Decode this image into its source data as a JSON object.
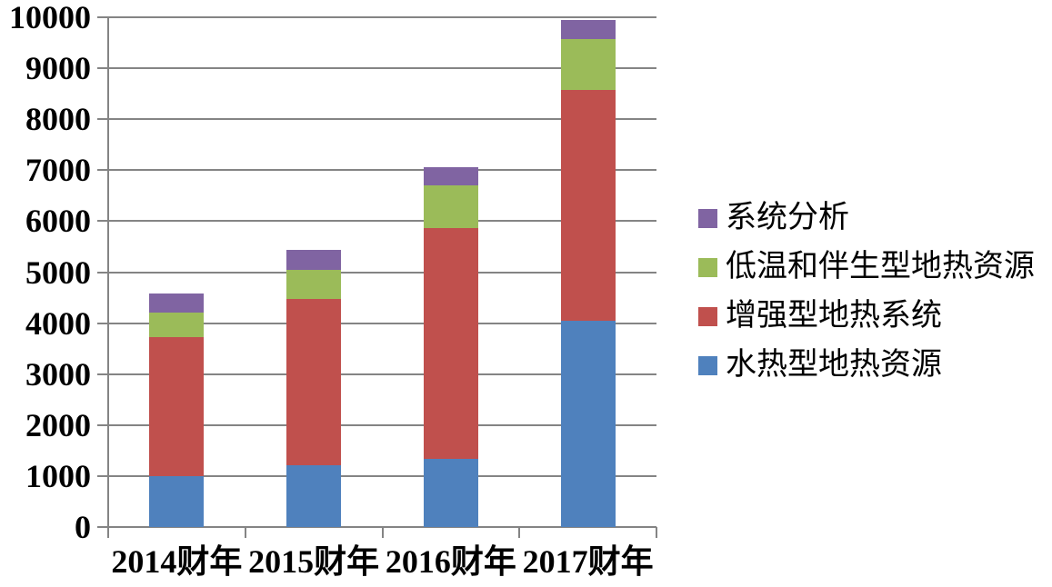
{
  "chart_data": {
    "type": "bar",
    "stacked": true,
    "title": "",
    "categories": [
      "2014财年",
      "2015财年",
      "2016财年",
      "2017财年"
    ],
    "series": [
      {
        "name": "水热型地热资源",
        "color": "#4F81BD",
        "values": [
          1000,
          1220,
          1340,
          4050
        ]
      },
      {
        "name": "增强型地热系统",
        "color": "#C0504D",
        "values": [
          2720,
          3250,
          4530,
          4520
        ]
      },
      {
        "name": "低温和伴生型地热资源",
        "color": "#9BBB59",
        "values": [
          490,
          580,
          840,
          1000
        ]
      },
      {
        "name": "系统分析",
        "color": "#8064A2",
        "values": [
          370,
          390,
          340,
          380
        ]
      }
    ],
    "stack_totals": [
      4580,
      5440,
      7050,
      9950
    ],
    "legend": {
      "position": "right",
      "order": [
        "系统分析",
        "低温和伴生型地热资源",
        "增强型地热系统",
        "水热型地热资源"
      ]
    },
    "xlabel": "",
    "ylabel": "",
    "ylim": [
      0,
      10000
    ],
    "ytick_step": 1000,
    "ytick_labels": [
      "0",
      "1000",
      "2000",
      "3000",
      "4000",
      "5000",
      "6000",
      "7000",
      "8000",
      "9000",
      "10000"
    ],
    "grid": true,
    "axis_color": "#848484",
    "text_color": "#000000",
    "background_color": "#FFFFFF"
  }
}
